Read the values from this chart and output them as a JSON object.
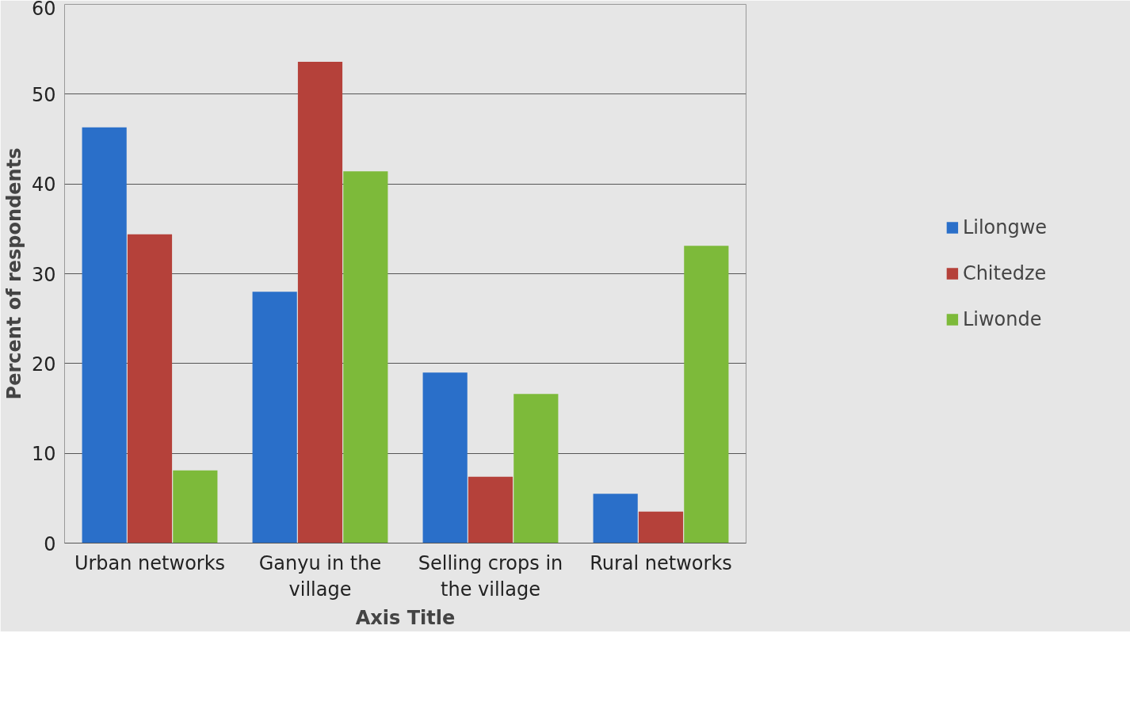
{
  "chart_data": {
    "type": "bar",
    "xlabel": "Axis Title",
    "ylabel": "Percent of respondents",
    "categories": [
      "Urban networks",
      "Ganyu in the village",
      "Selling crops in the village",
      "Rural networks"
    ],
    "series": [
      {
        "name": "Lilongwe",
        "color": "#2a6fc9",
        "values": [
          46.3,
          28,
          19,
          5.5
        ]
      },
      {
        "name": "Chitedze",
        "color": "#b5413a",
        "values": [
          34.4,
          53.6,
          7.4,
          3.5
        ]
      },
      {
        "name": "Liwonde",
        "color": "#7dba3a",
        "values": [
          8.1,
          41.4,
          16.6,
          33.1
        ]
      }
    ],
    "ylim": [
      0,
      60
    ],
    "yticks": [
      0,
      10,
      20,
      30,
      40,
      50,
      60
    ],
    "grid": "y",
    "legend": "right"
  }
}
